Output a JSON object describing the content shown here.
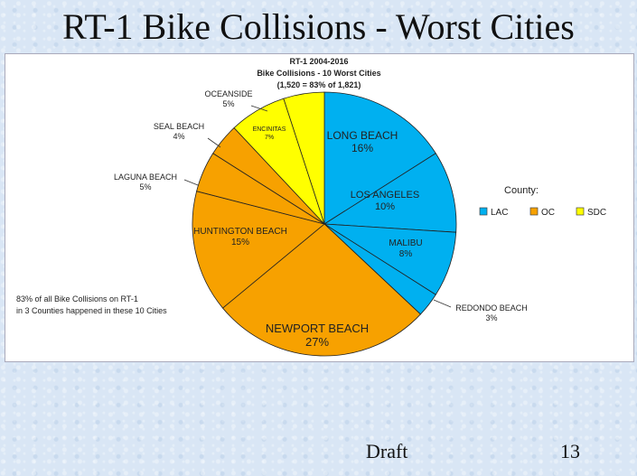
{
  "slide": {
    "title": "RT-1 Bike Collisions - Worst Cities",
    "footer_draft": "Draft",
    "page_number": "13"
  },
  "chart_data": {
    "type": "pie",
    "title_lines": [
      "RT-1 2004-2016",
      "Bike Collisions - 10 Worst Cities",
      "(1,520 = 83% of 1,821)"
    ],
    "legend_title": "County:",
    "legend": [
      {
        "key": "LAC",
        "label": "LAC",
        "color": "#00b0f0"
      },
      {
        "key": "OC",
        "label": "OC",
        "color": "#f7a100"
      },
      {
        "key": "SDC",
        "label": "SDC",
        "color": "#ffff00"
      }
    ],
    "slices": [
      {
        "name": "LONG BEACH",
        "pct_label": "16%",
        "value": 16,
        "county": "LAC"
      },
      {
        "name": "LOS ANGELES",
        "pct_label": "10%",
        "value": 10,
        "county": "LAC"
      },
      {
        "name": "MALIBU",
        "pct_label": "8%",
        "value": 8,
        "county": "LAC"
      },
      {
        "name": "REDONDO BEACH",
        "pct_label": "3%",
        "value": 3,
        "county": "LAC"
      },
      {
        "name": "NEWPORT BEACH",
        "pct_label": "27%",
        "value": 27,
        "county": "OC"
      },
      {
        "name": "HUNTINGTON BEACH",
        "pct_label": "15%",
        "value": 15,
        "county": "OC"
      },
      {
        "name": "LAGUNA BEACH",
        "pct_label": "5%",
        "value": 5,
        "county": "OC"
      },
      {
        "name": "SEAL BEACH",
        "pct_label": "4%",
        "value": 4,
        "county": "OC"
      },
      {
        "name": "ENCINITAS",
        "pct_label": "7%",
        "value": 7,
        "county": "SDC"
      },
      {
        "name": "OCEANSIDE",
        "pct_label": "5%",
        "value": 5,
        "county": "SDC"
      }
    ],
    "annotation_lines": [
      "83% of all Bike Collisions on RT-1",
      "in 3 Counties happened in these 10 Cities"
    ]
  }
}
